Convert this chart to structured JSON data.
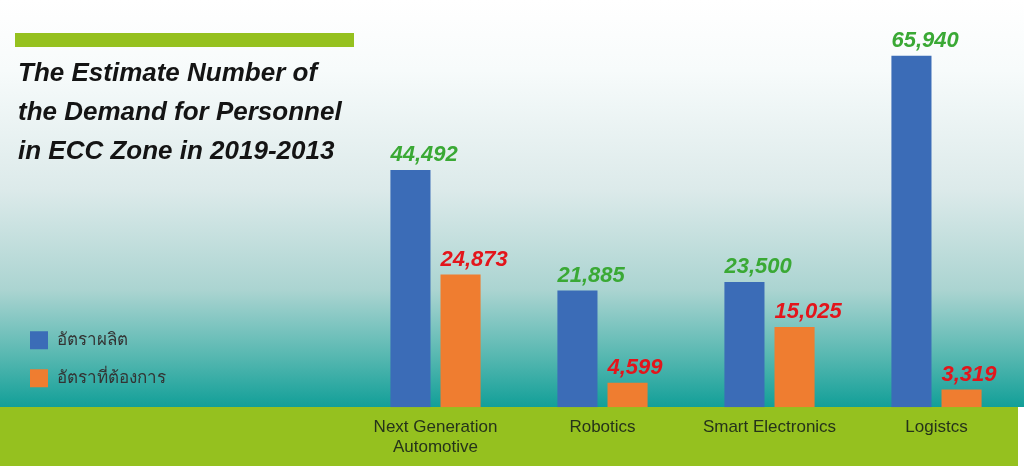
{
  "chart_data": {
    "type": "bar",
    "title": "The Estimate Number of the Demand for Personnel in ECC Zone in 2019-2013",
    "categories": [
      "Next Generation Automotive",
      "Robotics",
      "Smart Electronics",
      "Logistcs"
    ],
    "series": [
      {
        "name": "อัตราผลิต",
        "color": "#3b6cb7",
        "values": [
          44492,
          21885,
          23500,
          65940
        ],
        "value_labels": [
          "44,492",
          "21,885",
          "23,500",
          "65,940"
        ]
      },
      {
        "name": "อัตราที่ต้องการ",
        "color": "#ef7d30",
        "values": [
          24873,
          4599,
          15025,
          3319
        ],
        "value_labels": [
          "24,873",
          "4,599",
          "15,025",
          "3,319"
        ]
      }
    ],
    "legend": "left",
    "tick_labels": "x"
  }
}
